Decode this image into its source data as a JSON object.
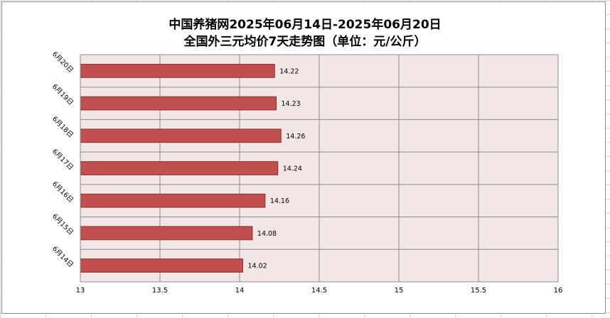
{
  "chart_data": {
    "type": "bar",
    "orientation": "horizontal",
    "title": "中国养猪网2025年06月14日-2025年06月20日",
    "subtitle": "全国外三元均价7天走势图（单位：元/公斤）",
    "categories": [
      "6月20日",
      "6月19日",
      "6月18日",
      "6月17日",
      "6月16日",
      "6月15日",
      "6月14日"
    ],
    "values": [
      14.22,
      14.23,
      14.26,
      14.24,
      14.16,
      14.08,
      14.02
    ],
    "data_labels": [
      "14.22",
      "14.23",
      "14.26",
      "14.24",
      "14.16",
      "14.08",
      "14.02"
    ],
    "x_ticks": [
      "13",
      "13.5",
      "14",
      "14.5",
      "15",
      "15.5",
      "16"
    ],
    "xlim": [
      13,
      16
    ],
    "xlabel": "",
    "ylabel": "",
    "grid": true,
    "legend": "none",
    "colors": {
      "bar": "#c0504d",
      "bar_edge": "#8c2f2c",
      "plot_bg": "#f2e6e6",
      "grid": "#8c8c8c",
      "text": "#000000"
    }
  }
}
